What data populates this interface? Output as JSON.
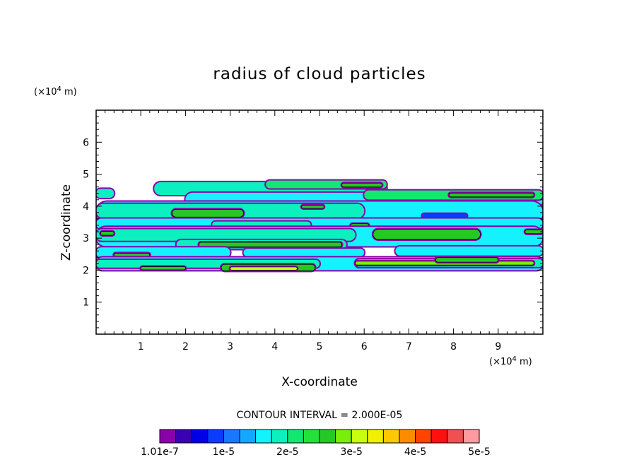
{
  "chart_data": {
    "type": "contour",
    "title": "radius of cloud particles",
    "xlabel": "X-coordinate",
    "ylabel": "Z-coordinate",
    "x_unit_base": "(×10",
    "x_unit_exp": "4",
    "x_unit_tail": " m)",
    "y_unit_base": "(×10",
    "y_unit_exp": "4",
    "y_unit_tail": " m)",
    "xlim": [
      0,
      10
    ],
    "ylim": [
      0,
      7
    ],
    "x_ticks": [
      1,
      2,
      3,
      4,
      5,
      6,
      7,
      8,
      9
    ],
    "y_ticks": [
      1,
      2,
      3,
      4,
      5,
      6
    ],
    "x_tick_labels": [
      "1",
      "2",
      "3",
      "4",
      "5",
      "6",
      "7",
      "8",
      "9"
    ],
    "y_tick_labels": [
      "1",
      "2",
      "3",
      "4",
      "5",
      "6"
    ],
    "contour_interval_label": "CONTOUR INTERVAL = 2.000E-05",
    "colorbar": {
      "colors": [
        "#8b00a8",
        "#3a00b4",
        "#0000e8",
        "#0a3cff",
        "#1878ff",
        "#12a8ff",
        "#14f2ff",
        "#0cf0c0",
        "#12e870",
        "#22e23a",
        "#26c826",
        "#78f00a",
        "#c8ff10",
        "#f0f000",
        "#ffc800",
        "#ff8c00",
        "#ff4400",
        "#ff1010",
        "#f25050",
        "#ff9aa0"
      ],
      "labels": [
        "1.01e-7",
        "1e-5",
        "2e-5",
        "3e-5",
        "4e-5",
        "5e-5"
      ]
    },
    "cloud_bands": [
      {
        "x0": 0.0,
        "x1": 0.4,
        "z": 4.4,
        "h": 0.14,
        "level": 7
      },
      {
        "x0": 1.3,
        "x1": 6.5,
        "z": 4.55,
        "h": 0.2,
        "level": 7
      },
      {
        "x0": 3.8,
        "x1": 6.5,
        "z": 4.68,
        "h": 0.12,
        "level": 8
      },
      {
        "x0": 5.5,
        "x1": 6.4,
        "z": 4.66,
        "h": 0.06,
        "level": 10
      },
      {
        "x0": 2.0,
        "x1": 10.0,
        "z": 4.2,
        "h": 0.22,
        "level": 6
      },
      {
        "x0": 6.0,
        "x1": 10.0,
        "z": 4.35,
        "h": 0.14,
        "level": 8
      },
      {
        "x0": 7.9,
        "x1": 9.8,
        "z": 4.35,
        "h": 0.06,
        "level": 10
      },
      {
        "x0": 0.0,
        "x1": 10.0,
        "z": 3.8,
        "h": 0.34,
        "level": 6
      },
      {
        "x0": 0.0,
        "x1": 6.0,
        "z": 3.85,
        "h": 0.22,
        "level": 7
      },
      {
        "x0": 1.7,
        "x1": 3.3,
        "z": 3.78,
        "h": 0.12,
        "level": 10
      },
      {
        "x0": 4.6,
        "x1": 5.1,
        "z": 3.98,
        "h": 0.05,
        "level": 10
      },
      {
        "x0": 7.3,
        "x1": 8.3,
        "z": 3.7,
        "h": 0.06,
        "level": 3
      },
      {
        "x0": 0.0,
        "x1": 10.0,
        "z": 3.45,
        "h": 0.16,
        "level": 6
      },
      {
        "x0": 2.6,
        "x1": 4.8,
        "z": 3.42,
        "h": 0.1,
        "level": 7
      },
      {
        "x0": 5.7,
        "x1": 6.1,
        "z": 3.4,
        "h": 0.05,
        "level": 10
      },
      {
        "x0": 0.0,
        "x1": 10.0,
        "z": 3.05,
        "h": 0.3,
        "level": 6
      },
      {
        "x0": 0.0,
        "x1": 5.8,
        "z": 3.1,
        "h": 0.18,
        "level": 7
      },
      {
        "x0": 6.2,
        "x1": 8.6,
        "z": 3.12,
        "h": 0.16,
        "level": 10
      },
      {
        "x0": 0.1,
        "x1": 0.4,
        "z": 3.15,
        "h": 0.06,
        "level": 10
      },
      {
        "x0": 9.6,
        "x1": 10.0,
        "z": 3.2,
        "h": 0.06,
        "level": 10
      },
      {
        "x0": 1.8,
        "x1": 5.6,
        "z": 2.8,
        "h": 0.14,
        "level": 7
      },
      {
        "x0": 2.3,
        "x1": 5.5,
        "z": 2.8,
        "h": 0.07,
        "level": 10
      },
      {
        "x0": 0.0,
        "x1": 3.0,
        "z": 2.55,
        "h": 0.16,
        "level": 6
      },
      {
        "x0": 0.4,
        "x1": 1.2,
        "z": 2.48,
        "h": 0.05,
        "level": 10
      },
      {
        "x0": 3.3,
        "x1": 6.0,
        "z": 2.55,
        "h": 0.12,
        "level": 6
      },
      {
        "x0": 6.7,
        "x1": 10.0,
        "z": 2.6,
        "h": 0.14,
        "level": 6
      },
      {
        "x0": 0.0,
        "x1": 10.0,
        "z": 2.2,
        "h": 0.2,
        "level": 6
      },
      {
        "x0": 0.0,
        "x1": 5.0,
        "z": 2.2,
        "h": 0.12,
        "level": 7
      },
      {
        "x0": 5.8,
        "x1": 10.0,
        "z": 2.22,
        "h": 0.12,
        "level": 7
      },
      {
        "x0": 5.8,
        "x1": 9.8,
        "z": 2.22,
        "h": 0.06,
        "level": 11
      },
      {
        "x0": 2.8,
        "x1": 4.9,
        "z": 2.08,
        "h": 0.1,
        "level": 10
      },
      {
        "x0": 3.0,
        "x1": 4.5,
        "z": 2.05,
        "h": 0.05,
        "level": 12
      },
      {
        "x0": 1.0,
        "x1": 2.0,
        "z": 2.06,
        "h": 0.05,
        "level": 10
      },
      {
        "x0": 7.6,
        "x1": 9.0,
        "z": 2.32,
        "h": 0.07,
        "level": 10
      }
    ]
  }
}
